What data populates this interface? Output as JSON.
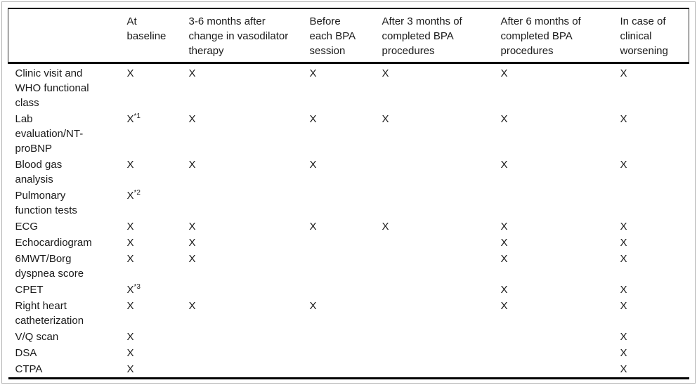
{
  "page": {
    "background": "#ffffff",
    "frame_border_color": "#b5b5b5",
    "rule_color": "#000000",
    "text_color": "#1a1a1a"
  },
  "table": {
    "columns": [
      "",
      "At\nbaseline",
      "3-6 months after\nchange in vasodilator\ntherapy",
      "Before\neach BPA\nsession",
      "After 3 months of\ncompleted BPA\nprocedures",
      "After 6 months of\ncompleted BPA\nprocedures",
      "In case of\nclinical\nworsening"
    ],
    "rows": [
      {
        "label": "Clinic visit and\nWHO functional\nclass",
        "marks": [
          "X",
          "X",
          "X",
          "X",
          "X",
          "X"
        ]
      },
      {
        "label": "Lab\nevaluation/NT-\nproBNP",
        "marks": [
          "X*1",
          "X",
          "X",
          "X",
          "X",
          "X"
        ]
      },
      {
        "label": "Blood gas\nanalysis",
        "marks": [
          "X",
          "X",
          "X",
          "",
          "X",
          "X"
        ]
      },
      {
        "label": "Pulmonary\nfunction tests",
        "marks": [
          "X*2",
          "",
          "",
          "",
          "",
          ""
        ]
      },
      {
        "label": "ECG",
        "marks": [
          "X",
          "X",
          "X",
          "X",
          "X",
          "X"
        ]
      },
      {
        "label": "Echocardiogram",
        "marks": [
          "X",
          "X",
          "",
          "",
          "X",
          "X"
        ]
      },
      {
        "label": "6MWT/Borg\ndyspnea score",
        "marks": [
          "X",
          "X",
          "",
          "",
          "X",
          "X"
        ]
      },
      {
        "label": "CPET",
        "marks": [
          "X*3",
          "",
          "",
          "",
          "X",
          "X"
        ]
      },
      {
        "label": "Right heart\ncatheterization",
        "marks": [
          "X",
          "X",
          "X",
          "",
          "X",
          "X"
        ]
      },
      {
        "label": "V/Q scan",
        "marks": [
          "X",
          "",
          "",
          "",
          "",
          "X"
        ]
      },
      {
        "label": "DSA",
        "marks": [
          "X",
          "",
          "",
          "",
          "",
          "X"
        ]
      },
      {
        "label": "CTPA",
        "marks": [
          "X",
          "",
          "",
          "",
          "",
          "X"
        ]
      }
    ]
  }
}
